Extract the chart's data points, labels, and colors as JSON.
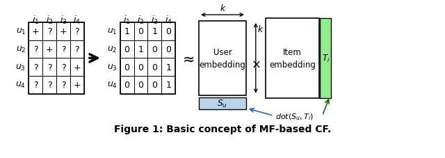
{
  "title": "Figure 1: Basic concept of MF-based CF.",
  "title_fontsize": 10,
  "background_color": "#ffffff",
  "matrix1_rows": [
    "$u_1$",
    "$u_2$",
    "$u_3$",
    "$u_4$"
  ],
  "matrix1_cols": [
    "$i_1$",
    "$i_2$",
    "$i_3$",
    "$i_4$"
  ],
  "matrix1_data": [
    [
      "+",
      "?",
      "+",
      "?"
    ],
    [
      "?",
      "+",
      "?",
      "?"
    ],
    [
      "?",
      "?",
      "?",
      "+"
    ],
    [
      "?",
      "?",
      "?",
      "+"
    ]
  ],
  "matrix2_rows": [
    "$u_1$",
    "$u_2$",
    "$u_3$",
    "$u_4$"
  ],
  "matrix2_cols": [
    "$i_1$",
    "$i_2$",
    "$i_3$",
    "$i_4$"
  ],
  "matrix2_data": [
    [
      "1",
      "0",
      "1",
      "0"
    ],
    [
      "0",
      "1",
      "0",
      "0"
    ],
    [
      "0",
      "0",
      "0",
      "1"
    ],
    [
      "0",
      "0",
      "0",
      "1"
    ]
  ],
  "Su_color": "#b8d4e8",
  "Ti_color": "#90ee90",
  "dot_arrow_color_blue": "#2266cc",
  "dot_arrow_color_green": "#007700"
}
